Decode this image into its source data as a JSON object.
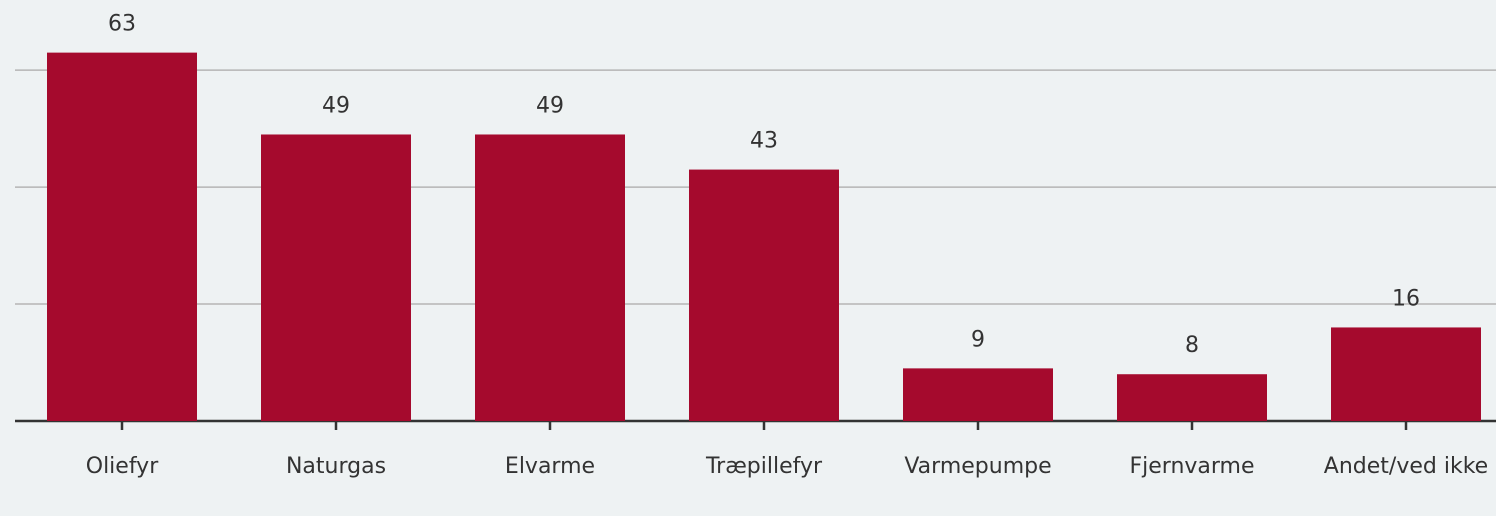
{
  "chart_data": {
    "type": "bar",
    "categories": [
      "Oliefyr",
      "Naturgas",
      "Elvarme",
      "Træpillefyr",
      "Varmepumpe",
      "Fjernvarme",
      "Andet/ved ikke"
    ],
    "values": [
      63,
      49,
      49,
      43,
      9,
      8,
      16
    ],
    "color": "#a50a2d",
    "ylim": [
      0,
      72
    ],
    "yticks": [
      0,
      20,
      40,
      60
    ],
    "grid": true
  }
}
